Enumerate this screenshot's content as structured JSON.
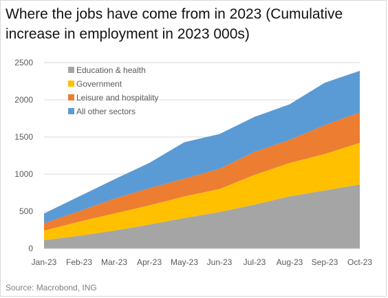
{
  "chart_data": {
    "type": "area",
    "stacked": true,
    "title": "Where the jobs have come from in 2023 (Cumulative increase in employment in 2023 000s)",
    "source": "Source: Macrobond, ING",
    "categories": [
      "Jan-23",
      "Feb-23",
      "Mar-23",
      "Apr-23",
      "May-23",
      "Jun-23",
      "Jul-23",
      "Aug-23",
      "Sep-23",
      "Oct-23"
    ],
    "ylim": [
      0,
      2500
    ],
    "yticks": [
      0,
      500,
      1000,
      1500,
      2000,
      2500
    ],
    "grid": true,
    "legend_position": "top-left",
    "series": [
      {
        "name": "Education & health",
        "color": "#a5a5a5",
        "values": [
          110,
          170,
          240,
          320,
          410,
          490,
          590,
          700,
          780,
          860
        ]
      },
      {
        "name": "Government",
        "color": "#ffc000",
        "values": [
          130,
          190,
          230,
          260,
          290,
          310,
          400,
          450,
          490,
          560
        ]
      },
      {
        "name": "Leisure and hospitality",
        "color": "#ed7d31",
        "values": [
          100,
          140,
          200,
          230,
          240,
          270,
          310,
          310,
          390,
          410
        ]
      },
      {
        "name": "All other sectors",
        "color": "#5b9bd5",
        "values": [
          130,
          200,
          260,
          340,
          490,
          470,
          470,
          480,
          570,
          560
        ]
      }
    ]
  }
}
